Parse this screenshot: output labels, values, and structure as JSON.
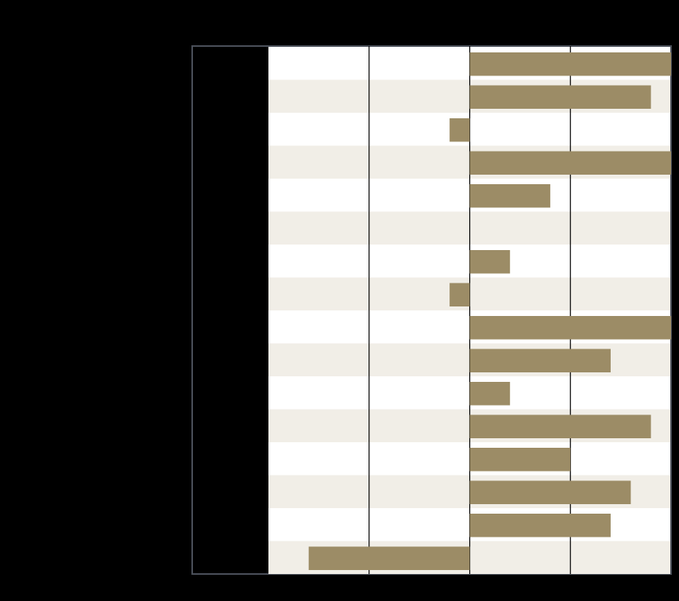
{
  "colors": {
    "background": "#000000",
    "bar": "#9c8c66",
    "row_band": "#f1eee7",
    "row_plain": "#ffffff",
    "frame": "#4a4f59",
    "gridline": "#000000",
    "label_column": "#000000"
  },
  "chart_data": {
    "type": "bar",
    "orientation": "horizontal",
    "title": "",
    "xlabel": "",
    "ylabel": "",
    "categories": [
      "",
      "",
      "",
      "",
      "",
      "",
      "",
      "",
      "",
      "",
      "",
      "",
      "",
      "",
      "",
      ""
    ],
    "values": [
      10,
      9,
      -1,
      10,
      4,
      0,
      2,
      -1,
      10,
      7,
      2,
      9,
      5,
      8,
      7,
      -8
    ],
    "xlim": [
      -10,
      10
    ],
    "gridlines_at": [
      -5,
      0,
      5
    ],
    "grid": true,
    "alternating_row_bands": true,
    "legend": "none"
  }
}
